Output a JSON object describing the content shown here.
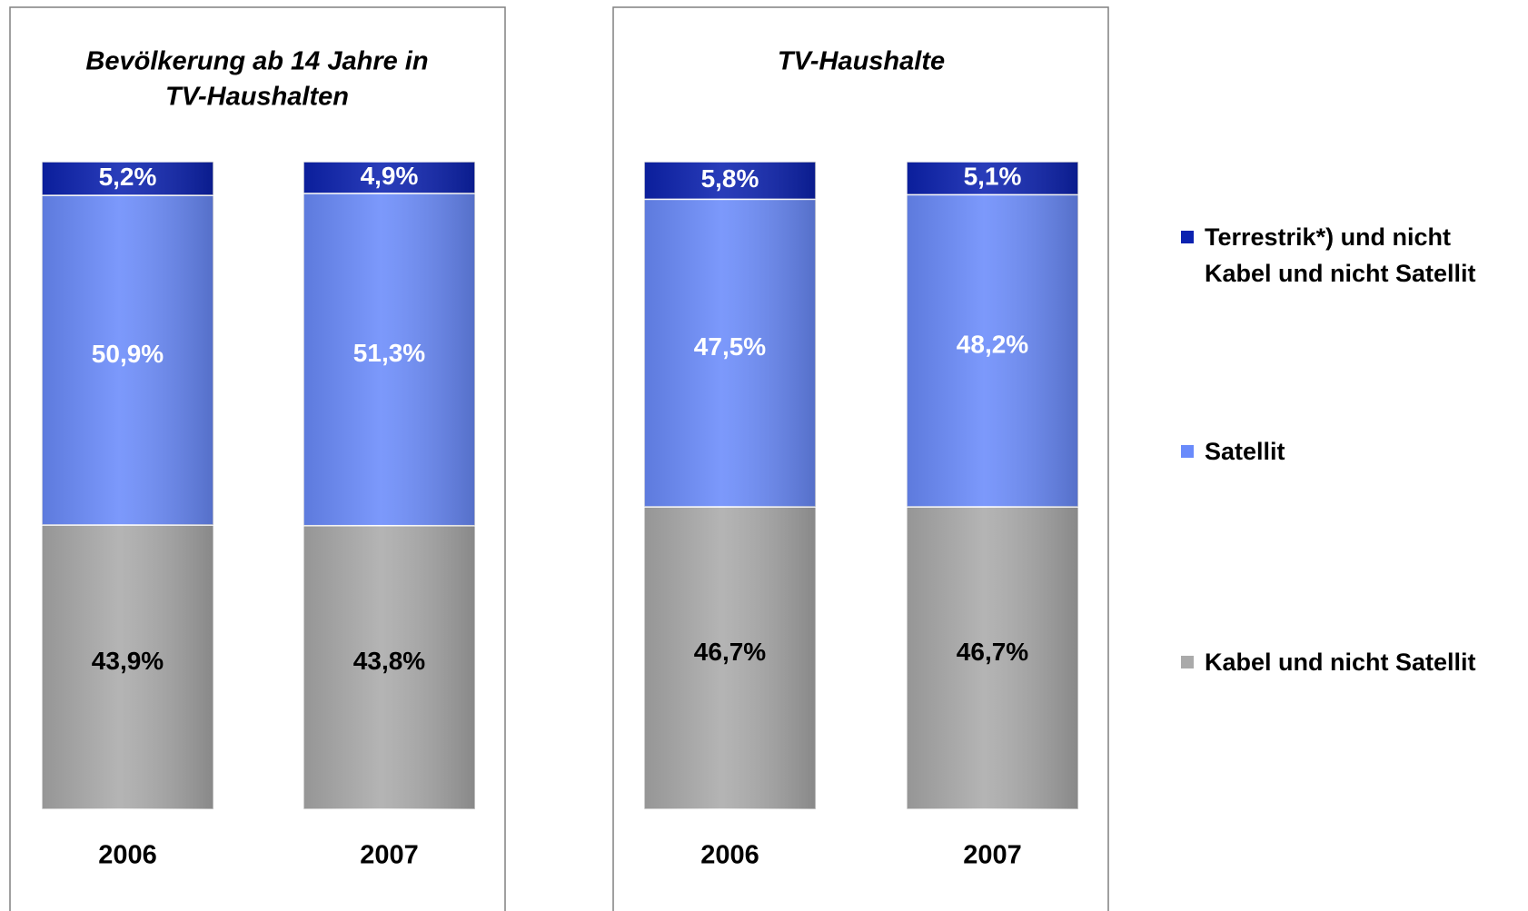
{
  "chart_data": {
    "type": "bar",
    "stacked": true,
    "ylim": [
      0,
      100
    ],
    "legend": "right",
    "series": [
      {
        "name": "Kabel und nicht Satellit",
        "color": "#aaaaaa",
        "label_color": "#000000"
      },
      {
        "name": "Satellit",
        "color": "#6a8bfb",
        "label_color": "#ffffff"
      },
      {
        "name": "Terrestrik*) und nicht\nKabel und nicht Satellit",
        "color": "#0c22b0",
        "label_color": "#ffffff"
      }
    ],
    "panels": [
      {
        "title": [
          "Bevölkerung ab 14 Jahre in",
          "TV-Haushalten"
        ],
        "categories": [
          "2006",
          "2007"
        ],
        "series": [
          {
            "values": [
              43.9,
              43.8
            ],
            "value_labels": [
              "43,9%",
              "43,8%"
            ]
          },
          {
            "values": [
              50.9,
              51.3
            ],
            "value_labels": [
              "50,9%",
              "51,3%"
            ]
          },
          {
            "values": [
              5.2,
              4.9
            ],
            "value_labels": [
              "5,2%",
              "4,9%"
            ]
          }
        ]
      },
      {
        "title": [
          "TV-Haushalte"
        ],
        "categories": [
          "2006",
          "2007"
        ],
        "series": [
          {
            "values": [
              46.7,
              46.7
            ],
            "value_labels": [
              "46,7%",
              "46,7%"
            ]
          },
          {
            "values": [
              47.5,
              48.2
            ],
            "value_labels": [
              "47,5%",
              "48,2%"
            ]
          },
          {
            "values": [
              5.8,
              5.1
            ],
            "value_labels": [
              "5,8%",
              "5,1%"
            ]
          }
        ]
      }
    ]
  }
}
